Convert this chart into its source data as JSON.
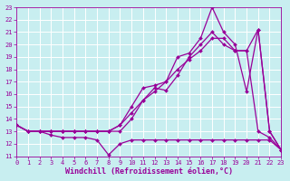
{
  "xlabel": "Windchill (Refroidissement éolien,°C)",
  "xlim": [
    0,
    23
  ],
  "ylim": [
    11,
    23
  ],
  "xticks": [
    0,
    1,
    2,
    3,
    4,
    5,
    6,
    7,
    8,
    9,
    10,
    11,
    12,
    13,
    14,
    15,
    16,
    17,
    18,
    19,
    20,
    21,
    22,
    23
  ],
  "yticks": [
    11,
    12,
    13,
    14,
    15,
    16,
    17,
    18,
    19,
    20,
    21,
    22,
    23
  ],
  "bg_color": "#c8eef0",
  "grid_color": "#ffffff",
  "line_color": "#990099",
  "figsize": [
    3.2,
    2.0
  ],
  "dpi": 100,
  "lines": [
    {
      "x": [
        0,
        1,
        2,
        3,
        4,
        5,
        6,
        7,
        8,
        9,
        10,
        11,
        12,
        13,
        14,
        15,
        16,
        17,
        18,
        19,
        20,
        21,
        22,
        23
      ],
      "y": [
        13.5,
        13.0,
        13.0,
        13.0,
        13.0,
        13.0,
        13.0,
        13.0,
        13.0,
        13.5,
        15.0,
        16.5,
        16.7,
        17.0,
        19.0,
        19.3,
        20.5,
        23.0,
        21.0,
        20.0,
        16.2,
        21.2,
        13.0,
        11.5
      ]
    },
    {
      "x": [
        0,
        1,
        2,
        3,
        4,
        5,
        6,
        7,
        8,
        9,
        10,
        11,
        12,
        13,
        14,
        15,
        16,
        17,
        18,
        19,
        20,
        21,
        22,
        23
      ],
      "y": [
        13.5,
        13.0,
        13.0,
        13.0,
        13.0,
        13.0,
        13.0,
        13.0,
        13.0,
        13.0,
        14.0,
        15.5,
        16.5,
        16.3,
        17.5,
        19.0,
        20.0,
        21.0,
        20.0,
        19.5,
        19.5,
        21.2,
        13.0,
        11.5
      ]
    },
    {
      "x": [
        0,
        1,
        2,
        3,
        4,
        5,
        6,
        7,
        8,
        9,
        10,
        11,
        12,
        13,
        14,
        15,
        16,
        17,
        18,
        19,
        20,
        21,
        22,
        23
      ],
      "y": [
        13.5,
        13.0,
        13.0,
        13.0,
        13.0,
        13.0,
        13.0,
        13.0,
        13.0,
        13.5,
        14.5,
        15.5,
        16.2,
        17.0,
        18.0,
        18.8,
        19.5,
        20.5,
        20.5,
        19.5,
        19.5,
        13.0,
        12.5,
        11.5
      ]
    },
    {
      "x": [
        0,
        1,
        2,
        3,
        4,
        5,
        6,
        7,
        8,
        9,
        10,
        11,
        12,
        13,
        14,
        15,
        16,
        17,
        18,
        19,
        20,
        21,
        22,
        23
      ],
      "y": [
        13.5,
        13.0,
        13.0,
        12.7,
        12.5,
        12.5,
        12.5,
        12.3,
        11.1,
        12.0,
        12.3,
        12.3,
        12.3,
        12.3,
        12.3,
        12.3,
        12.3,
        12.3,
        12.3,
        12.3,
        12.3,
        12.3,
        12.3,
        11.5
      ]
    }
  ]
}
